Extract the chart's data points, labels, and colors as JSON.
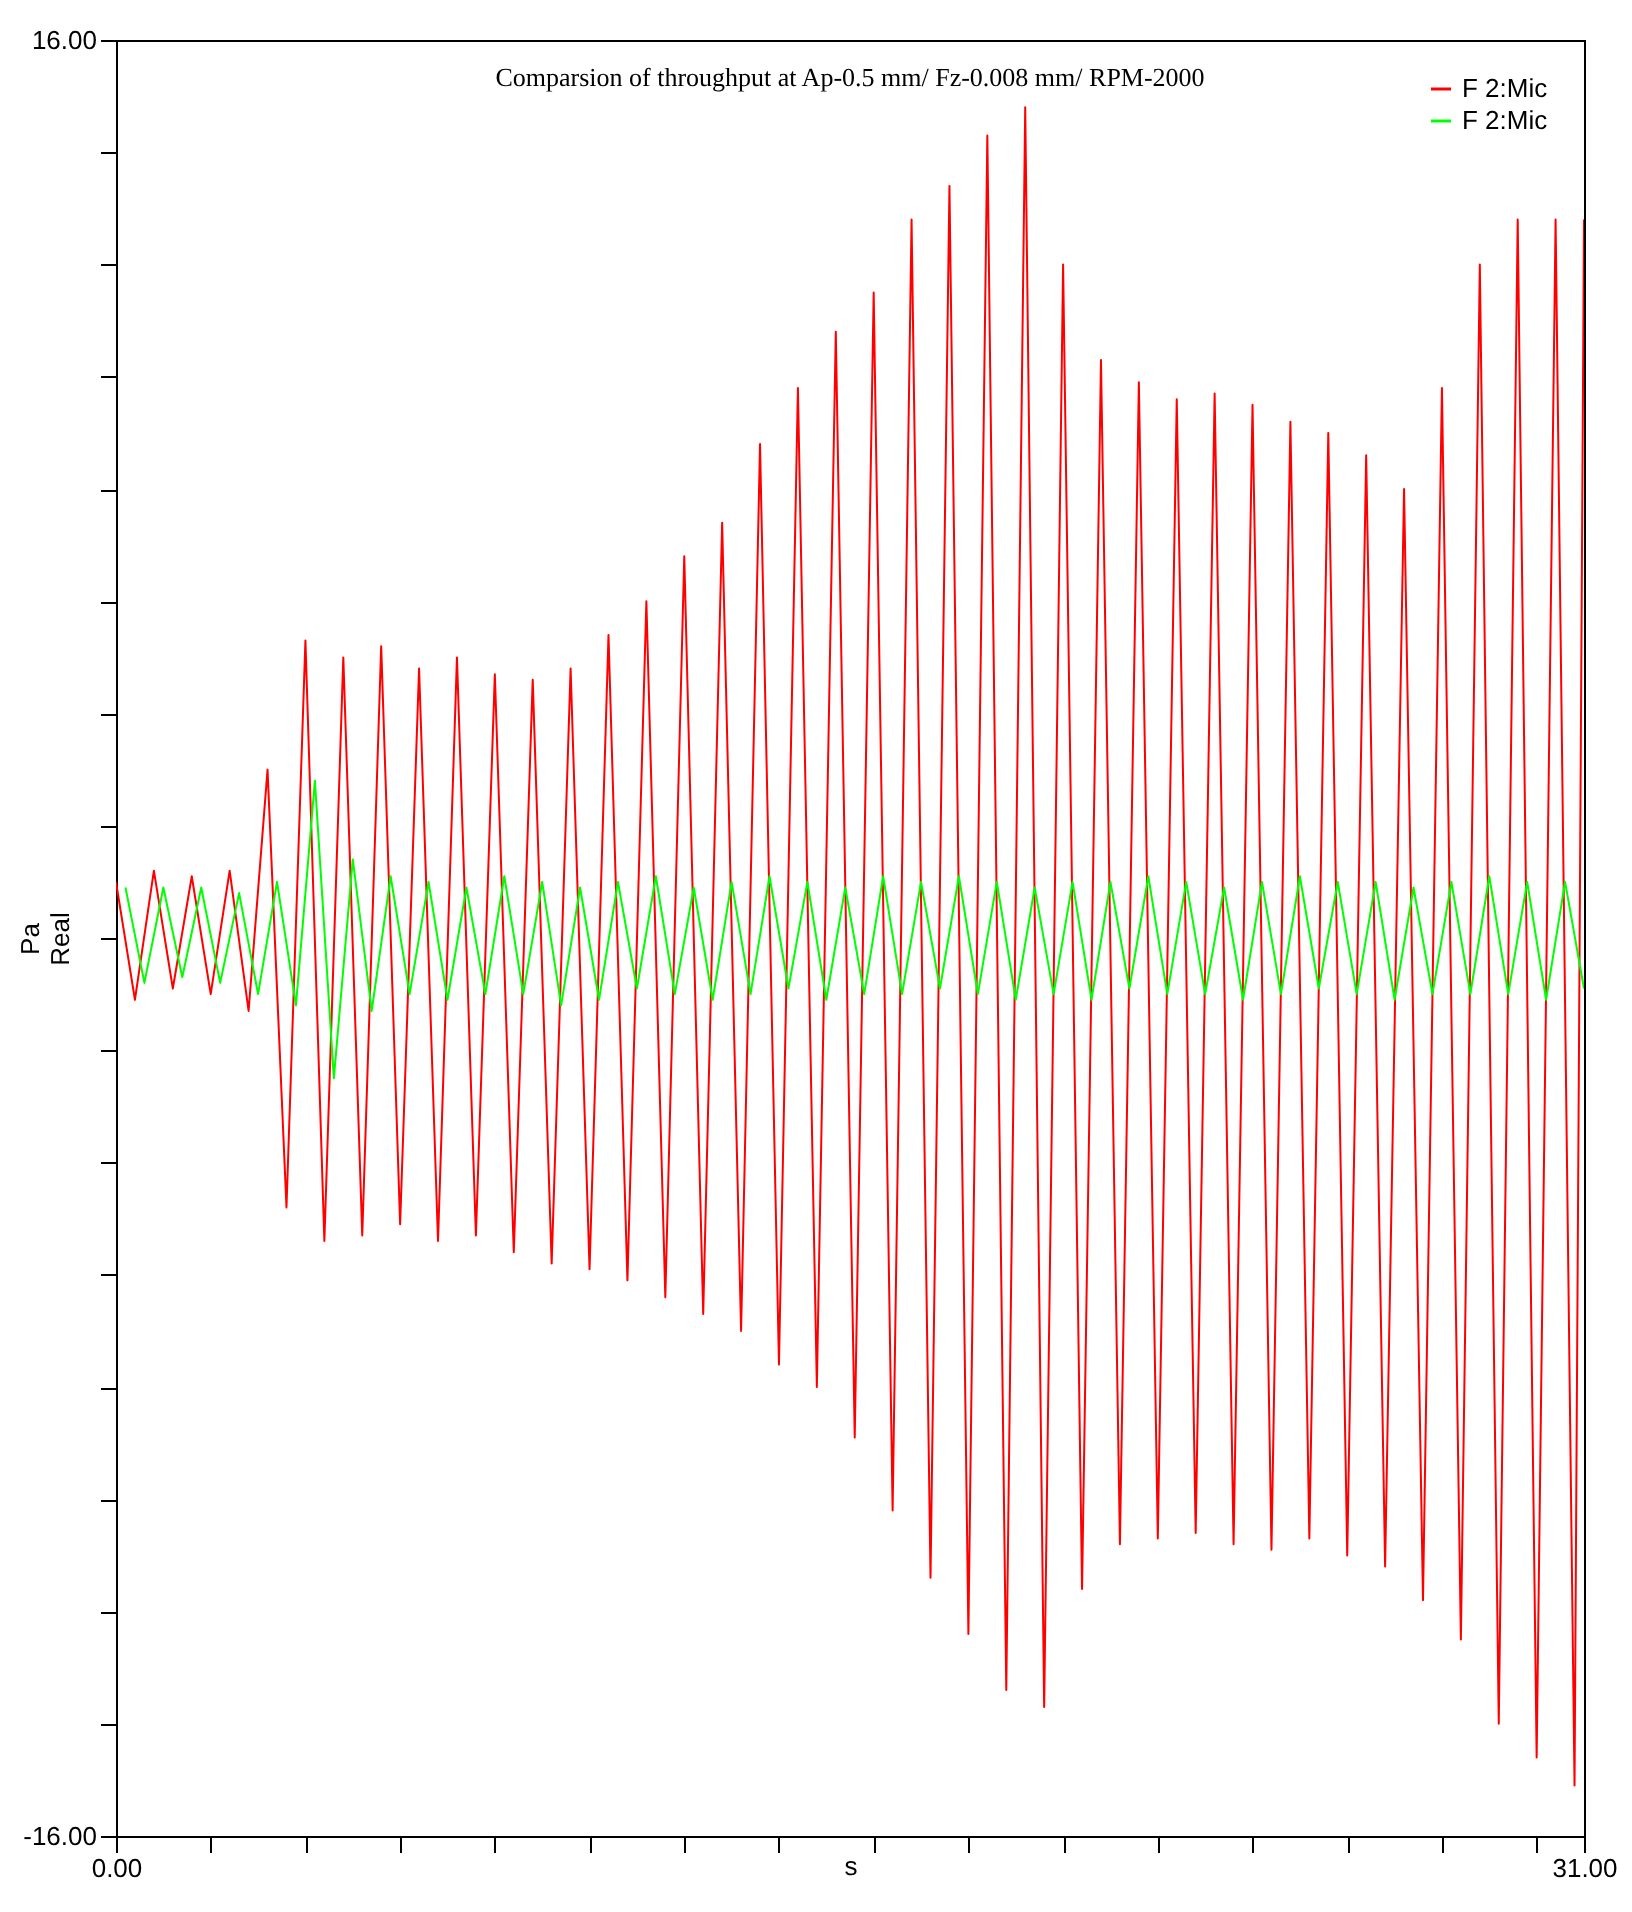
{
  "chart_data": {
    "type": "line",
    "title": "Comparsion of throughput at Ap-0.5 mm/ Fz-0.008 mm/ RPM-2000",
    "xlabel": "s",
    "ylabel": "Pa Real",
    "xlim": [
      0,
      31
    ],
    "ylim": [
      -16,
      16
    ],
    "xticks": [
      {
        "value": 0,
        "label": "0.00"
      },
      {
        "value": 2,
        "label": null
      },
      {
        "value": 4,
        "label": null
      },
      {
        "value": 6,
        "label": null
      },
      {
        "value": 8,
        "label": null
      },
      {
        "value": 10,
        "label": null
      },
      {
        "value": 12,
        "label": null
      },
      {
        "value": 14,
        "label": null
      },
      {
        "value": 16,
        "label": null
      },
      {
        "value": 18,
        "label": null
      },
      {
        "value": 20,
        "label": null
      },
      {
        "value": 22,
        "label": null
      },
      {
        "value": 24,
        "label": null
      },
      {
        "value": 26,
        "label": null
      },
      {
        "value": 28,
        "label": null
      },
      {
        "value": 30,
        "label": null
      },
      {
        "value": 31,
        "label": "31.00"
      }
    ],
    "yticks": [
      {
        "value": -16,
        "label": "-16.00"
      },
      {
        "value": -14,
        "label": null
      },
      {
        "value": -12,
        "label": null
      },
      {
        "value": -10,
        "label": null
      },
      {
        "value": -8,
        "label": null
      },
      {
        "value": -6,
        "label": null
      },
      {
        "value": -4,
        "label": null
      },
      {
        "value": -2,
        "label": null
      },
      {
        "value": 0,
        "label": null
      },
      {
        "value": 2,
        "label": null
      },
      {
        "value": 4,
        "label": null
      },
      {
        "value": 6,
        "label": null
      },
      {
        "value": 8,
        "label": null
      },
      {
        "value": 10,
        "label": null
      },
      {
        "value": 12,
        "label": null
      },
      {
        "value": 14,
        "label": null
      },
      {
        "value": 16,
        "label": "16.00"
      }
    ],
    "grid": false,
    "legend": "top right",
    "marker": "none",
    "line_style": "solid",
    "series": [
      {
        "name": "F 2:Mic",
        "color": "#ff0000",
        "x": [
          0,
          0.4,
          0.8,
          1.2,
          1.6,
          2.0,
          2.4,
          2.8,
          3.2,
          3.6,
          4.0,
          4.4,
          4.8,
          5.2,
          5.6,
          6.0,
          6.4,
          6.8,
          7.2,
          7.6,
          8.0,
          8.4,
          8.8,
          9.2,
          9.6,
          10.0,
          10.4,
          10.8,
          11.2,
          11.6,
          12.0,
          12.4,
          12.8,
          13.2,
          13.6,
          14.0,
          14.4,
          14.8,
          15.2,
          15.6,
          16.0,
          16.4,
          16.8,
          17.2,
          17.6,
          18.0,
          18.4,
          18.8,
          19.2,
          19.6,
          20.0,
          20.4,
          20.8,
          21.2,
          21.6,
          22.0,
          22.4,
          22.8,
          23.2,
          23.6,
          24.0,
          24.4,
          24.8,
          25.2,
          25.6,
          26.0,
          26.4,
          26.8,
          27.2,
          27.6,
          28.0,
          28.4,
          28.8,
          29.2,
          29.6,
          30.0,
          30.4,
          30.8,
          31.0
        ],
        "values": [
          1.0,
          -1.1,
          1.2,
          -0.9,
          1.1,
          -1.0,
          1.2,
          -1.3,
          3.0,
          -4.8,
          5.3,
          -5.4,
          5.0,
          -5.3,
          5.2,
          -5.1,
          4.8,
          -5.4,
          5.0,
          -5.3,
          4.7,
          -5.6,
          4.6,
          -5.8,
          4.8,
          -5.9,
          5.4,
          -6.1,
          6.0,
          -6.4,
          6.8,
          -6.7,
          7.4,
          -7.0,
          8.8,
          -7.6,
          9.8,
          -8.0,
          10.8,
          -8.9,
          11.5,
          -10.2,
          12.8,
          -11.4,
          13.4,
          -12.4,
          14.3,
          -13.4,
          14.8,
          -13.7,
          12.0,
          -11.6,
          10.3,
          -10.8,
          9.9,
          -10.7,
          9.6,
          -10.6,
          9.7,
          -10.8,
          9.5,
          -10.9,
          9.2,
          -10.7,
          9.0,
          -11.0,
          8.6,
          -11.2,
          8.0,
          -11.8,
          9.8,
          -12.5,
          12.0,
          -14.0,
          12.8,
          -14.6,
          12.8,
          -15.1,
          12.8
        ]
      },
      {
        "name": "F 2:Mic",
        "color": "#00ff00",
        "x": [
          0.2,
          0.6,
          1.0,
          1.4,
          1.8,
          2.2,
          2.6,
          3.0,
          3.4,
          3.8,
          4.2,
          4.6,
          5.0,
          5.4,
          5.8,
          6.2,
          6.6,
          7.0,
          7.4,
          7.8,
          8.2,
          8.6,
          9.0,
          9.4,
          9.8,
          10.2,
          10.6,
          11.0,
          11.4,
          11.8,
          12.2,
          12.6,
          13.0,
          13.4,
          13.8,
          14.2,
          14.6,
          15.0,
          15.4,
          15.8,
          16.2,
          16.6,
          17.0,
          17.4,
          17.8,
          18.2,
          18.6,
          19.0,
          19.4,
          19.8,
          20.2,
          20.6,
          21.0,
          21.4,
          21.8,
          22.2,
          22.6,
          23.0,
          23.4,
          23.8,
          24.2,
          24.6,
          25.0,
          25.4,
          25.8,
          26.2,
          26.6,
          27.0,
          27.4,
          27.8,
          28.2,
          28.6,
          29.0,
          29.4,
          29.8,
          30.2,
          30.6,
          31.0
        ],
        "values": [
          0.9,
          -0.8,
          0.9,
          -0.7,
          0.9,
          -0.8,
          0.8,
          -1.0,
          1.0,
          -1.2,
          2.8,
          -2.5,
          1.4,
          -1.3,
          1.1,
          -1.0,
          1.0,
          -1.1,
          0.9,
          -1.0,
          1.1,
          -1.0,
          1.0,
          -1.2,
          0.9,
          -1.1,
          1.0,
          -0.9,
          1.1,
          -1.0,
          0.9,
          -1.1,
          1.0,
          -1.0,
          1.1,
          -0.9,
          1.0,
          -1.1,
          0.9,
          -1.0,
          1.1,
          -1.0,
          1.0,
          -0.9,
          1.1,
          -1.0,
          1.0,
          -1.1,
          0.9,
          -1.0,
          1.0,
          -1.1,
          1.0,
          -0.9,
          1.1,
          -1.0,
          1.0,
          -1.0,
          0.9,
          -1.1,
          1.0,
          -1.0,
          1.1,
          -0.9,
          1.0,
          -1.0,
          1.0,
          -1.1,
          0.9,
          -1.0,
          1.0,
          -1.0,
          1.1,
          -1.0,
          1.0,
          -1.1,
          1.0,
          -0.9
        ]
      }
    ]
  }
}
